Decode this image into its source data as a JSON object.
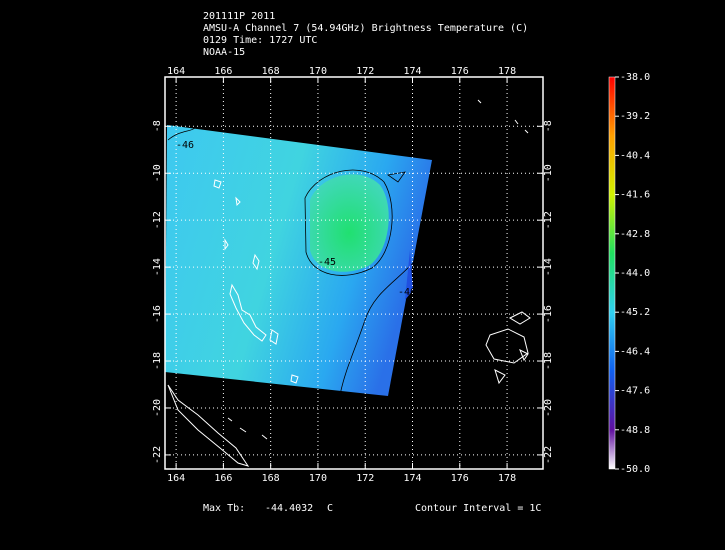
{
  "header": {
    "lines": [
      "201111P 2011",
      "AMSU-A Channel 7 (54.94GHz) Brightness Temperature (C)",
      "0129 Time: 1727 UTC",
      "NOAA-15"
    ]
  },
  "map": {
    "lonlim": [
      163.53,
      179.52
    ],
    "latlim": [
      -5.9,
      -22.6
    ],
    "lon_ticks": [
      164,
      166,
      168,
      170,
      172,
      174,
      176,
      178
    ],
    "lat_ticks": [
      -8,
      -10,
      -12,
      -14,
      -16,
      -18,
      -20,
      -22
    ],
    "contour_labels": [
      "-46",
      "-45",
      "-46"
    ]
  },
  "colorbar": {
    "lim": [
      -50,
      -38
    ],
    "ticks": [
      {
        "value": -38,
        "label": "-38.0"
      },
      {
        "value": -39.2,
        "label": "-39.2"
      },
      {
        "value": -40.4,
        "label": "-40.4"
      },
      {
        "value": -41.6,
        "label": "-41.6"
      },
      {
        "value": -42.8,
        "label": "-42.8"
      },
      {
        "value": -44,
        "label": "-44.0"
      },
      {
        "value": -45.2,
        "label": "-45.2"
      },
      {
        "value": -46.4,
        "label": "-46.4"
      },
      {
        "value": -47.6,
        "label": "-47.6"
      },
      {
        "value": -48.8,
        "label": "-48.8"
      },
      {
        "value": -50,
        "label": "-50.0"
      }
    ]
  },
  "footer": {
    "max_label": "Max Tb:",
    "max_value": "-44.4032",
    "unit": "C",
    "contour_interval": "Contour Interval = 1C"
  }
}
